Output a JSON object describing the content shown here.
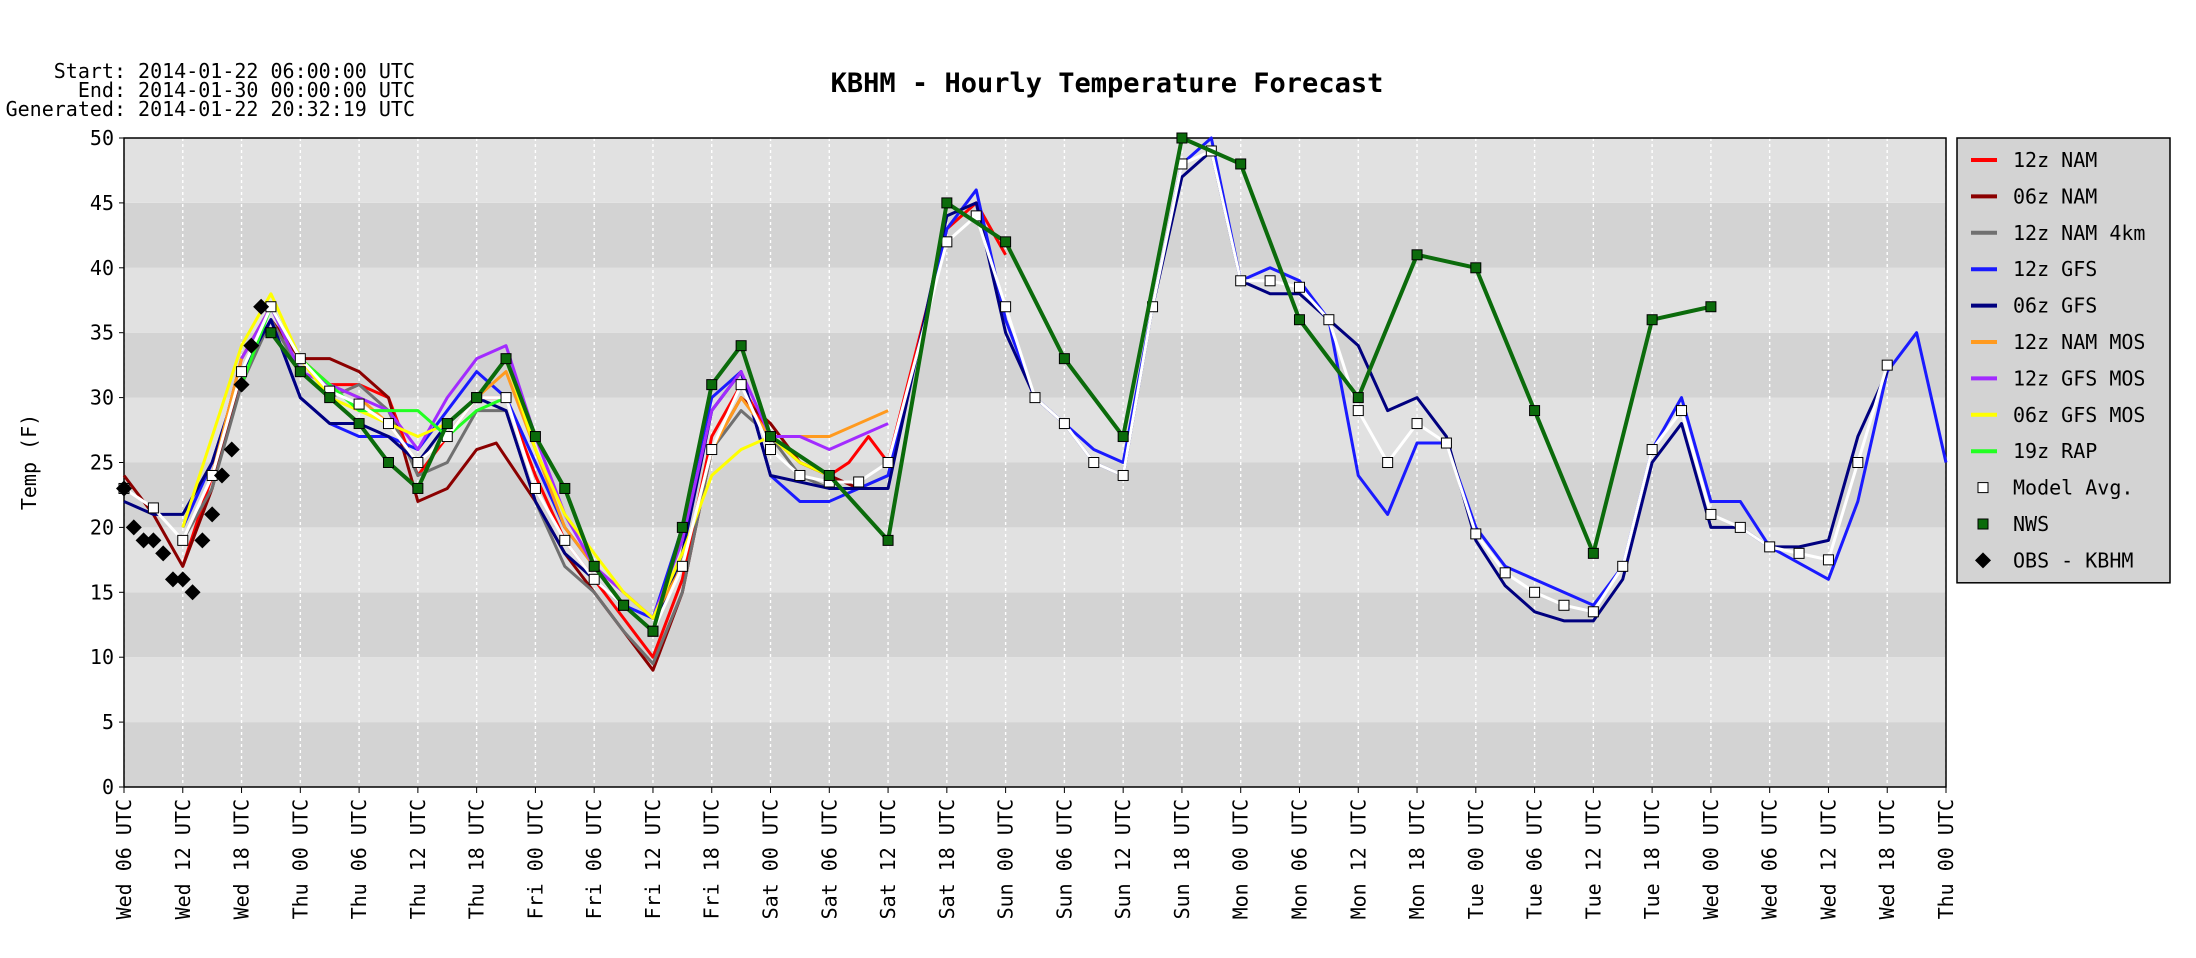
{
  "chart_data": {
    "type": "line",
    "title": "KBHM - Hourly Temperature Forecast",
    "header": [
      "Start: 2014-01-22 06:00:00 UTC",
      "End: 2014-01-30 00:00:00 UTC",
      "Generated: 2014-01-22 20:32:19 UTC"
    ],
    "y_label": "Temp (F)",
    "xlim": [
      0,
      186
    ],
    "xticks": [
      {
        "value": 0,
        "label": "Wed 06 UTC"
      },
      {
        "value": 6,
        "label": "Wed 12 UTC"
      },
      {
        "value": 12,
        "label": "Wed 18 UTC"
      },
      {
        "value": 18,
        "label": "Thu 00 UTC"
      },
      {
        "value": 24,
        "label": "Thu 06 UTC"
      },
      {
        "value": 30,
        "label": "Thu 12 UTC"
      },
      {
        "value": 36,
        "label": "Thu 18 UTC"
      },
      {
        "value": 42,
        "label": "Fri 00 UTC"
      },
      {
        "value": 48,
        "label": "Fri 06 UTC"
      },
      {
        "value": 54,
        "label": "Fri 12 UTC"
      },
      {
        "value": 60,
        "label": "Fri 18 UTC"
      },
      {
        "value": 66,
        "label": "Sat 00 UTC"
      },
      {
        "value": 72,
        "label": "Sat 06 UTC"
      },
      {
        "value": 78,
        "label": "Sat 12 UTC"
      },
      {
        "value": 84,
        "label": "Sat 18 UTC"
      },
      {
        "value": 90,
        "label": "Sun 00 UTC"
      },
      {
        "value": 96,
        "label": "Sun 06 UTC"
      },
      {
        "value": 102,
        "label": "Sun 12 UTC"
      },
      {
        "value": 108,
        "label": "Sun 18 UTC"
      },
      {
        "value": 114,
        "label": "Mon 00 UTC"
      },
      {
        "value": 120,
        "label": "Mon 06 UTC"
      },
      {
        "value": 126,
        "label": "Mon 12 UTC"
      },
      {
        "value": 132,
        "label": "Mon 18 UTC"
      },
      {
        "value": 138,
        "label": "Tue 00 UTC"
      },
      {
        "value": 144,
        "label": "Tue 06 UTC"
      },
      {
        "value": 150,
        "label": "Tue 12 UTC"
      },
      {
        "value": 156,
        "label": "Tue 18 UTC"
      },
      {
        "value": 162,
        "label": "Wed 00 UTC"
      },
      {
        "value": 168,
        "label": "Wed 06 UTC"
      },
      {
        "value": 174,
        "label": "Wed 12 UTC"
      },
      {
        "value": 180,
        "label": "Wed 18 UTC"
      },
      {
        "value": 186,
        "label": "Thu 00 UTC"
      }
    ],
    "ylim": [
      0,
      50
    ],
    "yticks": [
      0,
      5,
      10,
      15,
      20,
      25,
      30,
      35,
      40,
      45,
      50
    ],
    "band_colors": [
      "#d3d3d3",
      "#e1e1e1"
    ],
    "grid": true,
    "legend_position": "right",
    "series": [
      {
        "name": "12z NAM",
        "color": "#ff0000",
        "line": true,
        "marker": null,
        "x": [
          6,
          9,
          12,
          15,
          18,
          21,
          24,
          27,
          30,
          33,
          36,
          39,
          42,
          45,
          48,
          51,
          54,
          57,
          60,
          63,
          66,
          69,
          72,
          74,
          76,
          78,
          84,
          87,
          90
        ],
        "values": [
          17,
          24,
          33,
          37,
          33,
          31,
          31,
          30,
          24,
          27,
          30,
          30,
          24,
          19,
          16,
          13,
          10,
          16,
          27,
          31,
          27,
          25,
          24,
          25,
          27,
          25,
          43,
          45,
          41
        ]
      },
      {
        "name": "06z NAM",
        "color": "#8b0000",
        "line": true,
        "marker": null,
        "x": [
          0,
          3,
          6,
          9,
          12,
          15,
          18,
          21,
          24,
          27,
          30,
          33,
          36,
          38,
          42,
          45,
          48,
          51,
          54,
          57,
          60,
          63,
          66,
          69,
          72,
          75,
          78
        ],
        "values": [
          24,
          21,
          17,
          23,
          32,
          36,
          33,
          33,
          32,
          30,
          22,
          23,
          26,
          26.5,
          22,
          18,
          15,
          12,
          9,
          15,
          26,
          30,
          28,
          25,
          24,
          23,
          23
        ]
      },
      {
        "name": "12z NAM 4km",
        "color": "#707070",
        "line": true,
        "marker": null,
        "x": [
          6,
          9,
          12,
          15,
          18,
          21,
          24,
          27,
          30,
          33,
          36,
          39,
          42,
          45,
          48,
          51,
          54,
          57,
          60,
          63,
          66,
          69,
          72,
          75,
          78
        ],
        "values": [
          19,
          23,
          31,
          36,
          32,
          30,
          31,
          29,
          24,
          25,
          29,
          29,
          22,
          17,
          15,
          12,
          9.5,
          15,
          26,
          29,
          27,
          24,
          23,
          23,
          24
        ]
      },
      {
        "name": "12z GFS",
        "color": "#1a1aff",
        "line": true,
        "marker": null,
        "x": [
          6,
          9,
          12,
          15,
          18,
          21,
          24,
          27,
          30,
          33,
          36,
          39,
          42,
          45,
          48,
          51,
          54,
          57,
          60,
          63,
          66,
          69,
          72,
          75,
          78,
          84,
          87,
          90,
          93,
          96,
          99,
          102,
          105,
          108,
          111,
          114,
          117,
          120,
          123,
          126,
          129,
          132,
          135,
          138,
          141,
          144,
          150,
          153,
          156,
          159,
          162,
          165,
          168,
          174,
          177,
          180,
          183,
          186
        ],
        "values": [
          20,
          25,
          32,
          36,
          30,
          28,
          27,
          27,
          26,
          29,
          32,
          30,
          25,
          20,
          17,
          14,
          13,
          20,
          30,
          32,
          24,
          22,
          22,
          23,
          24,
          43,
          46,
          36,
          30,
          28,
          26,
          25,
          37,
          48,
          50,
          39,
          40,
          39,
          36,
          24,
          21,
          26.5,
          26.5,
          20,
          17,
          16,
          14,
          17,
          26,
          30,
          22,
          22,
          18.5,
          16,
          22,
          32,
          35,
          25
        ]
      },
      {
        "name": "06z GFS",
        "color": "#00007f",
        "line": true,
        "marker": null,
        "x": [
          0,
          3,
          6,
          9,
          12,
          15,
          18,
          21,
          24,
          27,
          30,
          33,
          36,
          39,
          42,
          45,
          48,
          51,
          54,
          57,
          60,
          63,
          66,
          72,
          78,
          84,
          87,
          90,
          93,
          96,
          99,
          102,
          105,
          108,
          111,
          114,
          117,
          120,
          123,
          126,
          129,
          132,
          135,
          138,
          141,
          144,
          147,
          150,
          153,
          156,
          159,
          162,
          165,
          168,
          171,
          174,
          177,
          180
        ],
        "values": [
          22,
          21,
          21,
          25,
          32,
          36,
          30,
          28,
          28,
          27,
          25,
          28,
          30,
          29,
          22,
          18,
          16,
          14,
          12,
          18,
          29,
          32,
          24,
          23,
          23,
          44,
          45,
          35,
          30,
          28,
          25,
          24,
          37,
          47,
          49,
          39,
          38,
          38,
          36,
          34,
          29,
          30,
          27,
          19,
          15.5,
          13.5,
          12.8,
          12.8,
          16,
          25,
          28,
          20,
          20,
          18.5,
          18.5,
          19,
          27,
          32
        ]
      },
      {
        "name": "12z NAM MOS",
        "color": "#ff9a1f",
        "line": true,
        "marker": null,
        "x": [
          9,
          12,
          15,
          18,
          21,
          24,
          27,
          30,
          33,
          36,
          39,
          42,
          45,
          48,
          51,
          54,
          57,
          60,
          63,
          66,
          69,
          72,
          75,
          78
        ],
        "values": [
          24,
          33,
          37,
          33,
          31,
          30,
          28,
          25,
          27,
          30,
          32,
          26,
          20,
          17,
          15,
          13,
          17,
          26,
          30,
          27,
          27,
          27,
          28,
          29
        ]
      },
      {
        "name": "12z GFS MOS",
        "color": "#a22bff",
        "line": true,
        "marker": null,
        "x": [
          12,
          15,
          18,
          21,
          24,
          27,
          30,
          33,
          36,
          39,
          42,
          45,
          48,
          51,
          54,
          57,
          60,
          63,
          66,
          69,
          72,
          75,
          78
        ],
        "values": [
          33,
          37,
          32,
          31,
          30,
          29,
          26,
          30,
          33,
          34,
          27,
          21,
          17,
          15,
          13,
          19,
          29,
          32,
          27,
          27,
          26,
          27,
          28
        ]
      },
      {
        "name": "06z GFS MOS",
        "color": "#ffff00",
        "line": true,
        "marker": null,
        "x": [
          6,
          9,
          12,
          15,
          18,
          21,
          24,
          27,
          30,
          33,
          36,
          39,
          42,
          45,
          48,
          51,
          54,
          57,
          60,
          63,
          66,
          69,
          72
        ],
        "values": [
          20,
          27,
          34,
          38,
          33,
          30,
          29,
          28,
          27,
          28,
          30,
          33,
          26,
          21,
          18,
          15,
          13,
          18,
          24,
          26,
          27,
          25,
          24
        ]
      },
      {
        "name": "19z RAP",
        "color": "#22ff22",
        "line": true,
        "marker": null,
        "x": [
          12,
          15,
          18,
          21,
          24,
          27,
          30,
          33,
          36,
          39
        ],
        "values": [
          31,
          37,
          33,
          31,
          29,
          29,
          29,
          27,
          29,
          30
        ]
      },
      {
        "name": "Model Avg.",
        "color": "#ffffff",
        "line": true,
        "marker": "square",
        "x": [
          0,
          3,
          6,
          9,
          12,
          15,
          18,
          21,
          24,
          27,
          30,
          33,
          36,
          39,
          42,
          45,
          48,
          51,
          54,
          57,
          60,
          63,
          66,
          69,
          72,
          75,
          78,
          84,
          87,
          90,
          93,
          96,
          99,
          102,
          105,
          108,
          111,
          114,
          117,
          120,
          123,
          126,
          129,
          132,
          135,
          138,
          141,
          144,
          147,
          150,
          153,
          156,
          159,
          162,
          165,
          168,
          171,
          174,
          177,
          180
        ],
        "values": [
          23,
          21.5,
          19,
          24,
          32,
          37,
          33,
          30.5,
          29.5,
          28,
          25,
          27,
          30,
          30,
          23,
          19,
          16,
          14,
          12,
          17,
          26,
          31,
          26,
          24,
          23.5,
          23.5,
          25,
          42,
          44,
          37,
          30,
          28,
          25,
          24,
          37,
          48,
          49,
          39,
          39,
          38.5,
          36,
          29,
          25,
          28,
          26.5,
          19.5,
          16.5,
          15,
          14,
          13.5,
          17,
          26,
          29,
          21,
          20,
          18.5,
          18,
          17.5,
          25,
          32.5
        ]
      },
      {
        "name": "NWS",
        "color": "#0b6b0b",
        "line": true,
        "marker": "square",
        "x": [
          15,
          18,
          21,
          24,
          27,
          30,
          33,
          36,
          39,
          42,
          45,
          48,
          51,
          54,
          57,
          60,
          63,
          66,
          72,
          78,
          84,
          90,
          96,
          102,
          108,
          114,
          120,
          126,
          132,
          138,
          144,
          150,
          156,
          162
        ],
        "values": [
          35,
          32,
          30,
          28,
          25,
          23,
          28,
          30,
          33,
          27,
          23,
          17,
          14,
          12,
          20,
          31,
          34,
          27,
          24,
          19,
          45,
          42,
          33,
          27,
          50,
          48,
          36,
          30,
          41,
          40,
          29,
          18,
          36,
          37
        ]
      },
      {
        "name": "OBS - KBHM",
        "color": "#000000",
        "line": false,
        "marker": "diamond",
        "x": [
          0,
          1,
          2,
          3,
          4,
          5,
          6,
          7,
          8,
          9,
          10,
          11,
          12,
          13,
          14
        ],
        "values": [
          23,
          20,
          19,
          19,
          18,
          16,
          16,
          15,
          19,
          21,
          24,
          26,
          31,
          34,
          37
        ]
      }
    ]
  }
}
